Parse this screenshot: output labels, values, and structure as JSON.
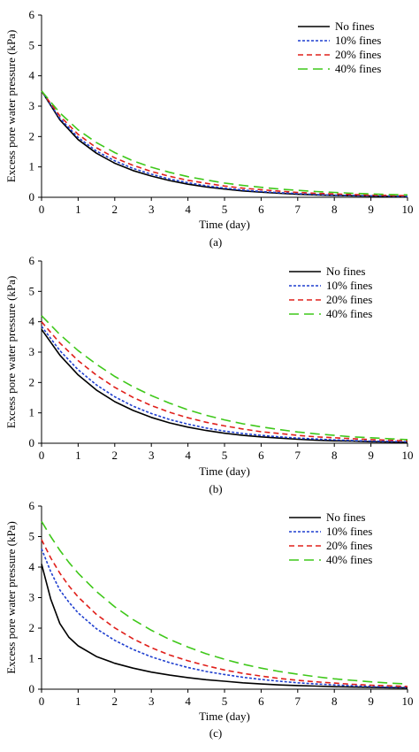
{
  "chart_data": [
    {
      "type": "line",
      "caption": "(a)",
      "xlabel": "Time (day)",
      "ylabel": "Excess pore water pressure  (kPa)",
      "xlim": [
        0,
        10
      ],
      "ylim": [
        0,
        6
      ],
      "xticks": [
        "0",
        "1",
        "2",
        "3",
        "4",
        "5",
        "6",
        "7",
        "8",
        "9",
        "10"
      ],
      "yticks": [
        "0",
        "1",
        "2",
        "3",
        "4",
        "5",
        "6"
      ],
      "legend_position": "top-right",
      "series": [
        {
          "name": "No fines",
          "color": "#000000",
          "dash": "solid",
          "x": [
            0,
            0.5,
            1,
            1.5,
            2,
            2.5,
            3,
            3.5,
            4,
            4.5,
            5,
            5.5,
            6,
            6.5,
            7,
            7.5,
            8,
            8.5,
            9,
            9.5,
            10
          ],
          "y": [
            3.5,
            2.55,
            1.9,
            1.45,
            1.12,
            0.88,
            0.7,
            0.55,
            0.43,
            0.34,
            0.27,
            0.21,
            0.17,
            0.13,
            0.1,
            0.08,
            0.06,
            0.05,
            0.04,
            0.03,
            0.02
          ]
        },
        {
          "name": "10% fines",
          "color": "#1f3fcf",
          "dash": "dot",
          "x": [
            0,
            0.5,
            1,
            1.5,
            2,
            2.5,
            3,
            3.5,
            4,
            4.5,
            5,
            5.5,
            6,
            6.5,
            7,
            7.5,
            8,
            8.5,
            9,
            9.5,
            10
          ],
          "y": [
            3.5,
            2.6,
            1.97,
            1.52,
            1.2,
            0.95,
            0.76,
            0.6,
            0.48,
            0.38,
            0.3,
            0.24,
            0.19,
            0.15,
            0.12,
            0.09,
            0.07,
            0.06,
            0.05,
            0.04,
            0.03
          ]
        },
        {
          "name": "20% fines",
          "color": "#e0201b",
          "dash": "dash",
          "x": [
            0,
            0.5,
            1,
            1.5,
            2,
            2.5,
            3,
            3.5,
            4,
            4.5,
            5,
            5.5,
            6,
            6.5,
            7,
            7.5,
            8,
            8.5,
            9,
            9.5,
            10
          ],
          "y": [
            3.5,
            2.68,
            2.07,
            1.63,
            1.3,
            1.05,
            0.85,
            0.69,
            0.56,
            0.46,
            0.37,
            0.3,
            0.25,
            0.2,
            0.16,
            0.13,
            0.11,
            0.09,
            0.07,
            0.06,
            0.05
          ]
        },
        {
          "name": "40% fines",
          "color": "#3fc81a",
          "dash": "longdash",
          "x": [
            0,
            0.5,
            1,
            1.5,
            2,
            2.5,
            3,
            3.5,
            4,
            4.5,
            5,
            5.5,
            6,
            6.5,
            7,
            7.5,
            8,
            8.5,
            9,
            9.5,
            10
          ],
          "y": [
            3.5,
            2.78,
            2.22,
            1.8,
            1.47,
            1.2,
            0.99,
            0.82,
            0.68,
            0.57,
            0.47,
            0.39,
            0.33,
            0.27,
            0.23,
            0.19,
            0.16,
            0.13,
            0.11,
            0.09,
            0.08
          ]
        }
      ]
    },
    {
      "type": "line",
      "caption": "(b)",
      "xlabel": "Time (day)",
      "ylabel": "Excess pore water pressure  (kPa)",
      "xlim": [
        0,
        10
      ],
      "ylim": [
        0,
        6
      ],
      "xticks": [
        "0",
        "1",
        "2",
        "3",
        "4",
        "5",
        "6",
        "7",
        "8",
        "9",
        "10"
      ],
      "yticks": [
        "0",
        "1",
        "2",
        "3",
        "4",
        "5",
        "6"
      ],
      "legend_position": "top-right",
      "series": [
        {
          "name": "No fines",
          "color": "#000000",
          "dash": "solid",
          "x": [
            0,
            0.5,
            1,
            1.5,
            2,
            2.5,
            3,
            3.5,
            4,
            4.5,
            5,
            5.5,
            6,
            6.5,
            7,
            7.5,
            8,
            8.5,
            9,
            9.5,
            10
          ],
          "y": [
            3.75,
            2.9,
            2.25,
            1.75,
            1.37,
            1.08,
            0.85,
            0.67,
            0.53,
            0.42,
            0.33,
            0.26,
            0.21,
            0.17,
            0.13,
            0.1,
            0.08,
            0.07,
            0.05,
            0.04,
            0.03
          ]
        },
        {
          "name": "10% fines",
          "color": "#1f3fcf",
          "dash": "dot",
          "x": [
            0,
            0.5,
            1,
            1.5,
            2,
            2.5,
            3,
            3.5,
            4,
            4.5,
            5,
            5.5,
            6,
            6.5,
            7,
            7.5,
            8,
            8.5,
            9,
            9.5,
            10
          ],
          "y": [
            3.85,
            3.05,
            2.42,
            1.92,
            1.53,
            1.22,
            0.98,
            0.78,
            0.63,
            0.5,
            0.4,
            0.32,
            0.26,
            0.21,
            0.17,
            0.14,
            0.11,
            0.09,
            0.07,
            0.06,
            0.05
          ]
        },
        {
          "name": "20% fines",
          "color": "#e0201b",
          "dash": "dash",
          "x": [
            0,
            0.5,
            1,
            1.5,
            2,
            2.5,
            3,
            3.5,
            4,
            4.5,
            5,
            5.5,
            6,
            6.5,
            7,
            7.5,
            8,
            8.5,
            9,
            9.5,
            10
          ],
          "y": [
            4.0,
            3.3,
            2.72,
            2.24,
            1.84,
            1.51,
            1.24,
            1.02,
            0.84,
            0.69,
            0.57,
            0.47,
            0.38,
            0.32,
            0.26,
            0.21,
            0.18,
            0.15,
            0.12,
            0.1,
            0.08
          ]
        },
        {
          "name": "40% fines",
          "color": "#3fc81a",
          "dash": "longdash",
          "x": [
            0,
            0.5,
            1,
            1.5,
            2,
            2.5,
            3,
            3.5,
            4,
            4.5,
            5,
            5.5,
            6,
            6.5,
            7,
            7.5,
            8,
            8.5,
            9,
            9.5,
            10
          ],
          "y": [
            4.2,
            3.58,
            3.05,
            2.6,
            2.2,
            1.86,
            1.57,
            1.32,
            1.1,
            0.92,
            0.77,
            0.64,
            0.54,
            0.45,
            0.37,
            0.31,
            0.26,
            0.21,
            0.18,
            0.15,
            0.12
          ]
        }
      ]
    },
    {
      "type": "line",
      "caption": "(c)",
      "xlabel": "Time (day)",
      "ylabel": "Excess pore water pressure (kPa)",
      "xlim": [
        0,
        10
      ],
      "ylim": [
        0,
        6
      ],
      "xticks": [
        "0",
        "1",
        "2",
        "3",
        "4",
        "5",
        "6",
        "7",
        "8",
        "9",
        "10"
      ],
      "yticks": [
        "0",
        "1",
        "2",
        "3",
        "4",
        "5",
        "6"
      ],
      "legend_position": "top-right",
      "series": [
        {
          "name": "No fines",
          "color": "#000000",
          "dash": "solid",
          "x": [
            0,
            0.25,
            0.5,
            0.75,
            1,
            1.5,
            2,
            2.5,
            3,
            3.5,
            4,
            4.5,
            5,
            5.5,
            6,
            6.5,
            7,
            7.5,
            8,
            8.5,
            9,
            9.5,
            10
          ],
          "y": [
            4.1,
            2.95,
            2.15,
            1.7,
            1.42,
            1.07,
            0.85,
            0.69,
            0.56,
            0.46,
            0.38,
            0.31,
            0.26,
            0.21,
            0.17,
            0.14,
            0.12,
            0.1,
            0.08,
            0.07,
            0.06,
            0.05,
            0.04
          ]
        },
        {
          "name": "10% fines",
          "color": "#1f3fcf",
          "dash": "dot",
          "x": [
            0,
            0.25,
            0.5,
            0.75,
            1,
            1.5,
            2,
            2.5,
            3,
            3.5,
            4,
            4.5,
            5,
            5.5,
            6,
            6.5,
            7,
            7.5,
            8,
            8.5,
            9,
            9.5,
            10
          ],
          "y": [
            4.6,
            3.85,
            3.25,
            2.85,
            2.5,
            1.98,
            1.6,
            1.3,
            1.06,
            0.87,
            0.71,
            0.58,
            0.48,
            0.39,
            0.32,
            0.26,
            0.21,
            0.17,
            0.14,
            0.11,
            0.09,
            0.07,
            0.06
          ]
        },
        {
          "name": "20% fines",
          "color": "#e0201b",
          "dash": "dash",
          "x": [
            0,
            0.25,
            0.5,
            0.75,
            1,
            1.5,
            2,
            2.5,
            3,
            3.5,
            4,
            4.5,
            5,
            5.5,
            6,
            6.5,
            7,
            7.5,
            8,
            8.5,
            9,
            9.5,
            10
          ],
          "y": [
            4.9,
            4.3,
            3.8,
            3.38,
            3.02,
            2.45,
            2.01,
            1.65,
            1.36,
            1.12,
            0.93,
            0.77,
            0.63,
            0.52,
            0.43,
            0.35,
            0.29,
            0.24,
            0.2,
            0.16,
            0.13,
            0.11,
            0.09
          ]
        },
        {
          "name": "40% fines",
          "color": "#3fc81a",
          "dash": "longdash",
          "x": [
            0,
            0.25,
            0.5,
            0.75,
            1,
            1.5,
            2,
            2.5,
            3,
            3.5,
            4,
            4.5,
            5,
            5.5,
            6,
            6.5,
            7,
            7.5,
            8,
            8.5,
            9,
            9.5,
            10
          ],
          "y": [
            5.5,
            5.0,
            4.55,
            4.15,
            3.8,
            3.2,
            2.7,
            2.28,
            1.93,
            1.63,
            1.38,
            1.16,
            0.98,
            0.82,
            0.69,
            0.58,
            0.49,
            0.41,
            0.34,
            0.29,
            0.24,
            0.2,
            0.17
          ]
        }
      ]
    }
  ]
}
